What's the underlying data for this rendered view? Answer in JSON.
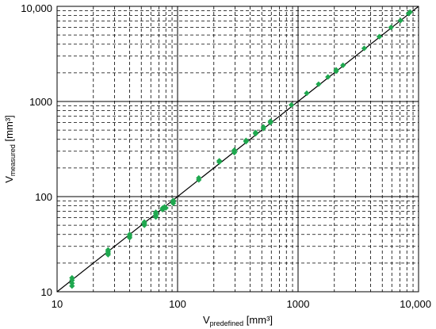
{
  "chart_data": {
    "type": "scatter",
    "x_scale": "log",
    "y_scale": "log",
    "xlim": [
      10,
      10000
    ],
    "ylim": [
      10,
      10000
    ],
    "x_ticks": [
      "10",
      "100",
      "1000",
      "10,000"
    ],
    "y_ticks": [
      "10",
      "100",
      "1000",
      "10,000"
    ],
    "xlabel": {
      "main": "V",
      "sub": "predefined",
      "unit": " [mm³]"
    },
    "ylabel": {
      "main": "V",
      "sub": "measured",
      "unit": " [mm³]"
    },
    "grid": {
      "major": "solid",
      "minor": "dashed"
    },
    "marker_color": "#1fa84f",
    "reference_line": {
      "type": "identity",
      "from": [
        10,
        10
      ],
      "to": [
        10000,
        10000
      ],
      "color": "#000000"
    },
    "points": [
      [
        13.3,
        11.5
      ],
      [
        13.3,
        12.3
      ],
      [
        13.3,
        13.2
      ],
      [
        13.3,
        14.0
      ],
      [
        26.5,
        24.5
      ],
      [
        26.5,
        25.5
      ],
      [
        26.5,
        26.5
      ],
      [
        26.5,
        27.5
      ],
      [
        40,
        37.0
      ],
      [
        40,
        38.5
      ],
      [
        40,
        40.0
      ],
      [
        53,
        50.0
      ],
      [
        53,
        52.0
      ],
      [
        53,
        54.0
      ],
      [
        66,
        61.0
      ],
      [
        66,
        63.5
      ],
      [
        66,
        66.0
      ],
      [
        66,
        68.5
      ],
      [
        75,
        73.0
      ],
      [
        75,
        75.5
      ],
      [
        78,
        78.0
      ],
      [
        80,
        76.0
      ],
      [
        92,
        85.0
      ],
      [
        92,
        88.0
      ],
      [
        92,
        91.0
      ],
      [
        150,
        150.0
      ],
      [
        150,
        157.0
      ],
      [
        222,
        231.0
      ],
      [
        222,
        238.0
      ],
      [
        296,
        290.0
      ],
      [
        296,
        300.0
      ],
      [
        296,
        308.0
      ],
      [
        370,
        378.0
      ],
      [
        370,
        390.0
      ],
      [
        444,
        458.0
      ],
      [
        444,
        472.0
      ],
      [
        516,
        520.0
      ],
      [
        516,
        540.0
      ],
      [
        590,
        600.0
      ],
      [
        590,
        620.0
      ],
      [
        880,
        920.0
      ],
      [
        1180,
        1220.0
      ],
      [
        1480,
        1520.0
      ],
      [
        1770,
        1810.0
      ],
      [
        2070,
        2080.0
      ],
      [
        2070,
        2150.0
      ],
      [
        2360,
        2400.0
      ],
      [
        3540,
        3620.0
      ],
      [
        4720,
        4800.0
      ],
      [
        5900,
        6000.0
      ],
      [
        7080,
        7100.0
      ],
      [
        8260,
        8400.0
      ],
      [
        8500,
        8700.0
      ]
    ]
  }
}
